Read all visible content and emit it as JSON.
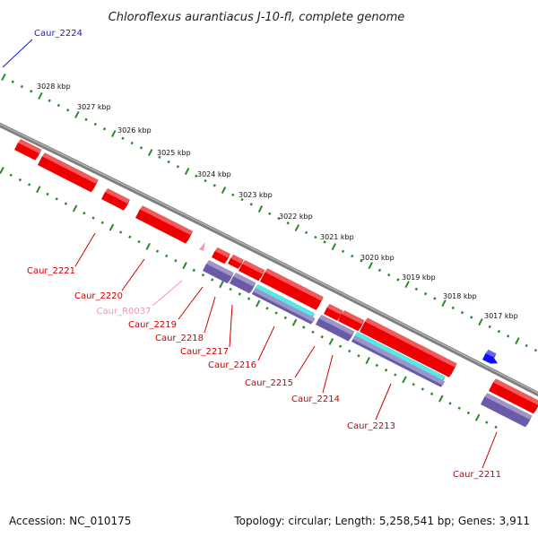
{
  "title": "Chloroflexus aurantiacus J-10-fl, complete genome",
  "footer": {
    "accession": "Accession: NC_010175",
    "stats": "Topology: circular; Length: 5,258,541 bp; Genes: 3,911"
  },
  "colors": {
    "backbone": "#7f7f7f",
    "ruler": "#2a8a2a",
    "cds": "#ee0000",
    "rrna": "#6a5aa8",
    "trna": "#ff8ec0",
    "misc": "#00d8d8",
    "other_gene": "#1010ee",
    "label_default": "#cc0000",
    "label_other": "#1a1acc",
    "label_rna": "#ff8ec0"
  },
  "ruler": {
    "ticks": [
      "3028 kbp",
      "3027 kbp",
      "3026 kbp",
      "3025 kbp",
      "3024 kbp",
      "3023 kbp",
      "3022 kbp",
      "3021 kbp",
      "3020 kbp",
      "3019 kbp",
      "3018 kbp",
      "3017 kbp"
    ]
  },
  "genes": [
    {
      "label": "Caur_2224",
      "type": "other"
    },
    {
      "label": "Caur_2221",
      "type": "cds"
    },
    {
      "label": "Caur_2220",
      "type": "cds"
    },
    {
      "label": "Caur_R0037",
      "type": "rna"
    },
    {
      "label": "Caur_2219",
      "type": "cds"
    },
    {
      "label": "Caur_2218",
      "type": "cds"
    },
    {
      "label": "Caur_2217",
      "type": "cds"
    },
    {
      "label": "Caur_2216",
      "type": "cds"
    },
    {
      "label": "Caur_2215",
      "type": "cds"
    },
    {
      "label": "Caur_2214",
      "type": "cds"
    },
    {
      "label": "Caur_2213",
      "type": "cds"
    },
    {
      "label": "Caur_2211",
      "type": "cds"
    }
  ]
}
